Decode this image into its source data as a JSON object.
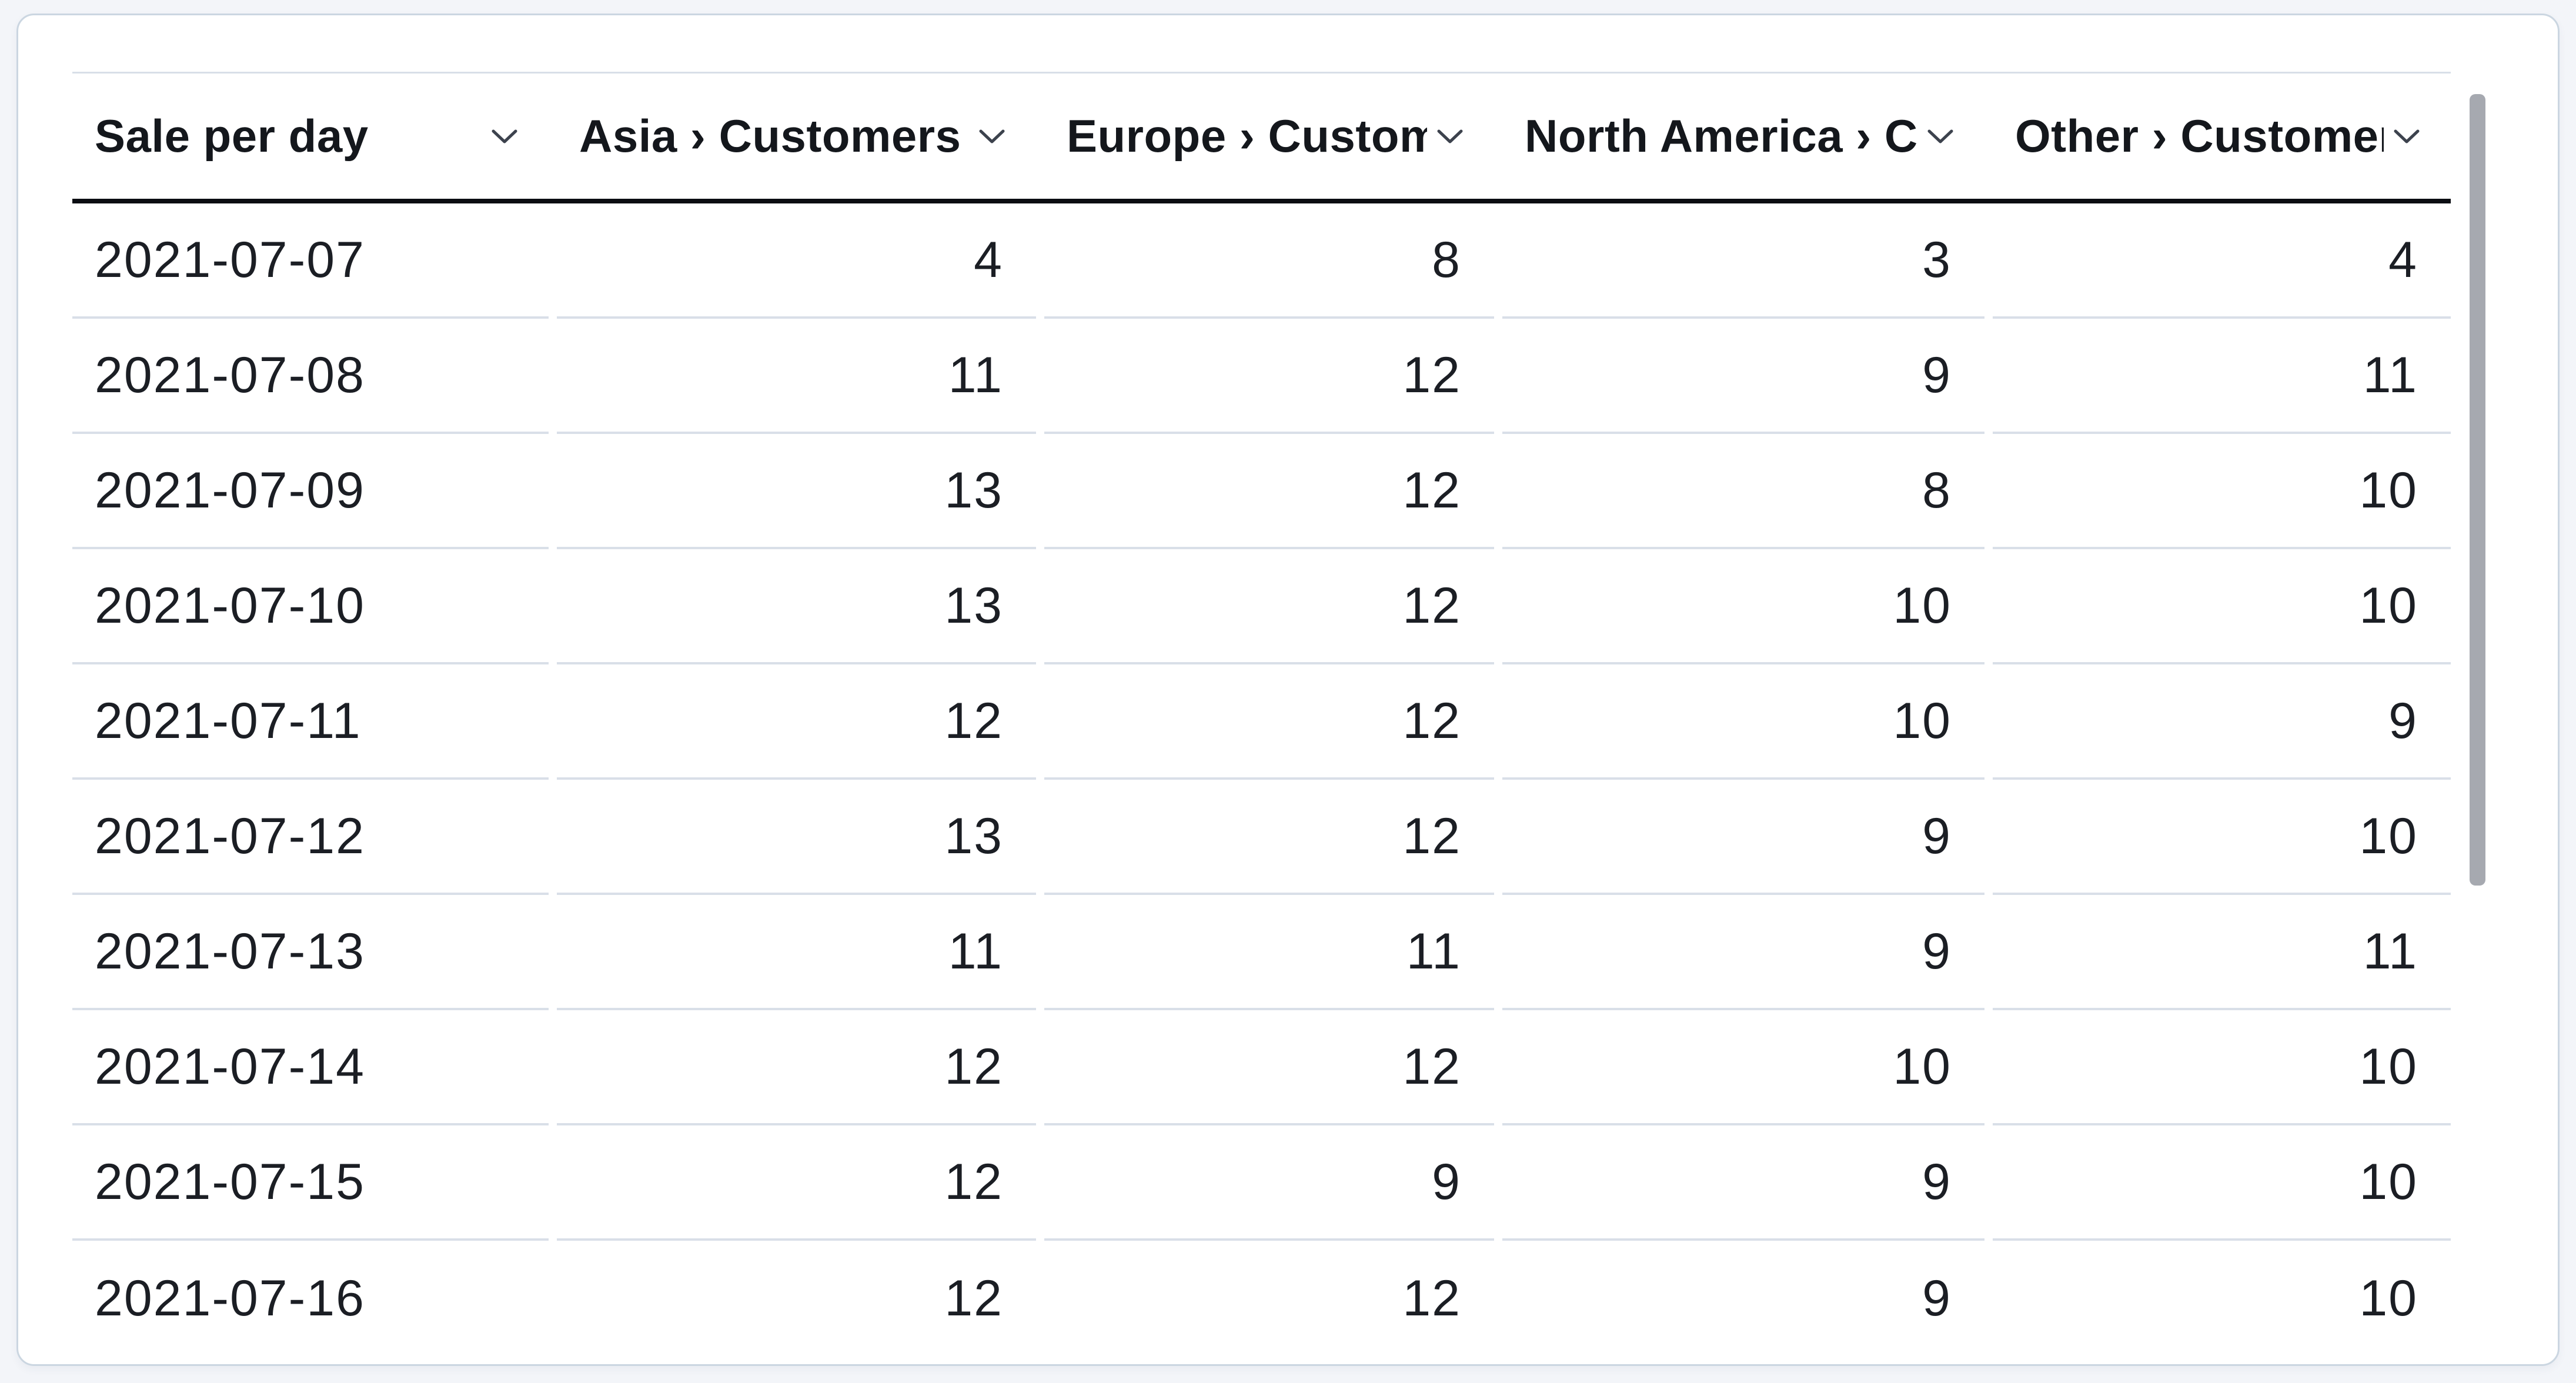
{
  "table": {
    "title_column_label": "Sale per day",
    "columns": [
      {
        "name": "sale-per-day",
        "label": "Sale per day",
        "align": "left"
      },
      {
        "name": "asia-customers",
        "label": "Asia › Customers",
        "align": "right"
      },
      {
        "name": "europe-customers",
        "label": "Europe › Customers",
        "align": "right"
      },
      {
        "name": "north-america-customers",
        "label": "North America › Customers",
        "align": "right"
      },
      {
        "name": "other-customers",
        "label": "Other › Customers",
        "align": "right"
      }
    ],
    "rows": [
      [
        "2021-07-07",
        4,
        8,
        3,
        4
      ],
      [
        "2021-07-08",
        11,
        12,
        9,
        11
      ],
      [
        "2021-07-09",
        13,
        12,
        8,
        10
      ],
      [
        "2021-07-10",
        13,
        12,
        10,
        10
      ],
      [
        "2021-07-11",
        12,
        12,
        10,
        9
      ],
      [
        "2021-07-12",
        13,
        12,
        9,
        10
      ],
      [
        "2021-07-13",
        11,
        11,
        9,
        11
      ],
      [
        "2021-07-14",
        12,
        12,
        10,
        10
      ],
      [
        "2021-07-15",
        12,
        9,
        9,
        10
      ],
      [
        "2021-07-16",
        12,
        12,
        9,
        10
      ]
    ]
  },
  "icons": {
    "header_dropdown": "chevron-down"
  },
  "colors": {
    "page_background": "#f3f5f9",
    "card_background": "#ffffff",
    "card_border": "#cbd6e1",
    "header_rule": "#0b0d12",
    "row_divider": "#d9dfe8",
    "header_text": "#14171c",
    "cell_text": "#1b1e24",
    "scrollbar_thumb": "#a6a9b0"
  }
}
